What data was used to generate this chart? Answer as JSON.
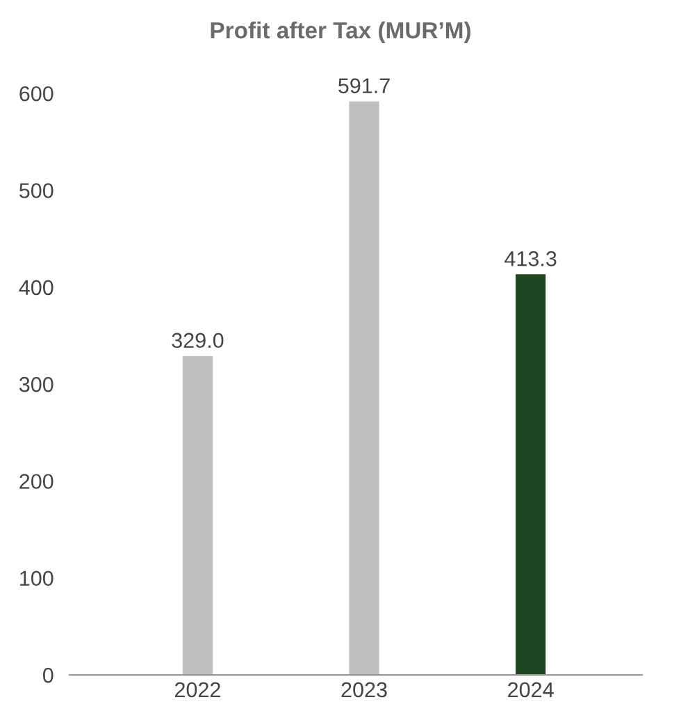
{
  "chart_data": {
    "type": "bar",
    "title": "Profit after Tax (MUR’M)",
    "categories": [
      "2022",
      "2023",
      "2024"
    ],
    "values": [
      329.0,
      591.7,
      413.3
    ],
    "colors": [
      "#bfbfbf",
      "#bfbfbf",
      "#1e4620"
    ],
    "ylim": [
      0,
      600
    ],
    "yticks": [
      0,
      100,
      200,
      300,
      400,
      500,
      600
    ],
    "value_labels": [
      "329.0",
      "591.7",
      "413.3"
    ],
    "grid": false,
    "legend": false
  }
}
